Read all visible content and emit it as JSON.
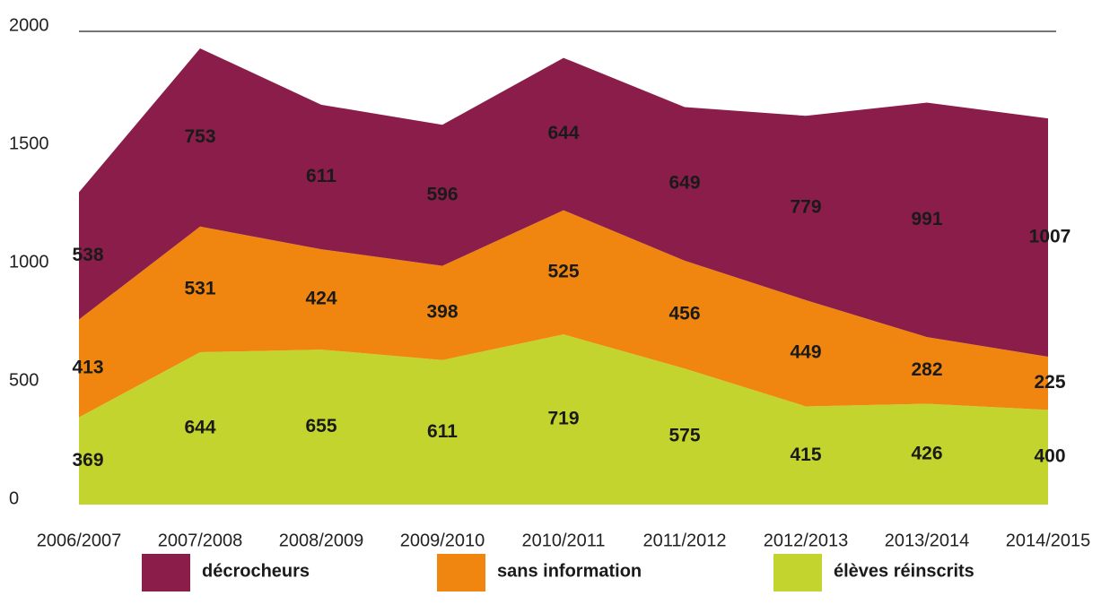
{
  "chart_data": {
    "type": "stacked_area",
    "categories": [
      "2006/2007",
      "2007/2008",
      "2008/2009",
      "2009/2010",
      "2010/2011",
      "2011/2012",
      "2012/2013",
      "2013/2014",
      "2014/2015"
    ],
    "series": [
      {
        "name": "élèves réinscrits",
        "color": "#c3d42e",
        "values": [
          369,
          644,
          655,
          611,
          719,
          575,
          415,
          426,
          400
        ]
      },
      {
        "name": "sans information",
        "color": "#f0860f",
        "values": [
          413,
          531,
          424,
          398,
          525,
          456,
          449,
          282,
          225
        ]
      },
      {
        "name": "décrocheurs",
        "color": "#8b1d4a",
        "values": [
          538,
          753,
          611,
          596,
          644,
          649,
          779,
          991,
          1007
        ]
      }
    ],
    "ylim": [
      0,
      2000
    ],
    "yticks": [
      0,
      500,
      1000,
      1500,
      2000
    ],
    "legend": "bottom"
  }
}
